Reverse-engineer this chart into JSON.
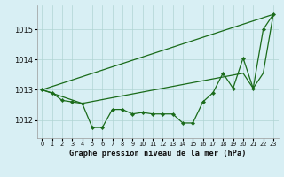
{
  "title": "Graphe pression niveau de la mer (hPa)",
  "background_color": "#d8eff4",
  "grid_color": "#b0d4d4",
  "line_color": "#1a6b1a",
  "xlim": [
    -0.5,
    23.5
  ],
  "ylim": [
    1011.4,
    1015.8
  ],
  "yticks": [
    1012,
    1013,
    1014,
    1015
  ],
  "xticks": [
    0,
    1,
    2,
    3,
    4,
    5,
    6,
    7,
    8,
    9,
    10,
    11,
    12,
    13,
    14,
    15,
    16,
    17,
    18,
    19,
    20,
    21,
    22,
    23
  ],
  "series1_x": [
    0,
    1,
    2,
    3,
    4,
    5,
    6,
    7,
    8,
    9,
    10,
    11,
    12,
    13,
    14,
    15,
    16,
    17,
    18,
    19,
    20,
    21,
    22,
    23
  ],
  "series1_y": [
    1013.0,
    1012.9,
    1012.65,
    1012.6,
    1012.55,
    1011.75,
    1011.75,
    1012.35,
    1012.35,
    1012.2,
    1012.25,
    1012.2,
    1012.2,
    1012.2,
    1011.9,
    1011.9,
    1012.6,
    1012.9,
    1013.55,
    1013.05,
    1014.05,
    1013.05,
    1015.0,
    1015.5
  ],
  "series2_x": [
    0,
    23
  ],
  "series2_y": [
    1013.0,
    1015.5
  ],
  "series3_x": [
    0,
    4,
    20,
    21,
    22,
    23
  ],
  "series3_y": [
    1013.0,
    1012.55,
    1013.55,
    1013.05,
    1013.55,
    1015.5
  ]
}
